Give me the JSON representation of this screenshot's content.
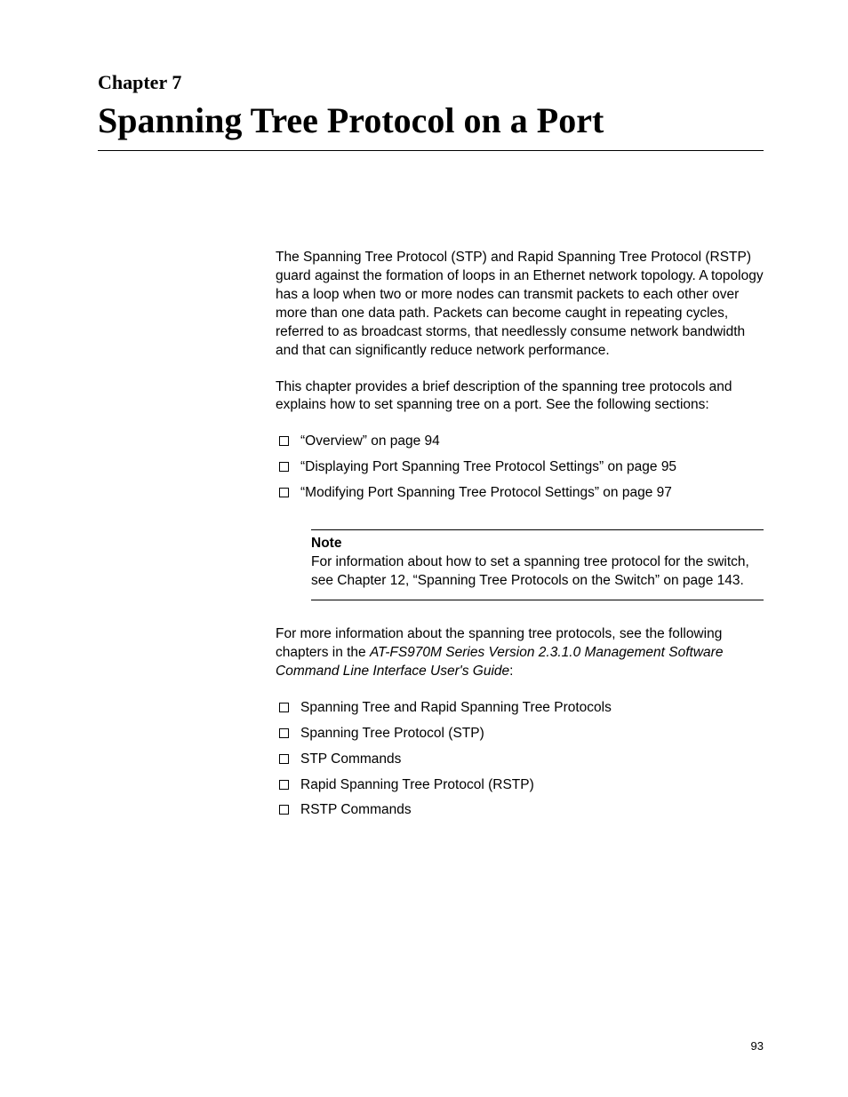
{
  "chapter_label": "Chapter 7",
  "chapter_title": "Spanning Tree Protocol on a Port",
  "para1": "The Spanning Tree Protocol (STP) and Rapid Spanning Tree Protocol (RSTP) guard against the formation of loops in an Ethernet network topology. A topology has a loop when two or more nodes can transmit packets to each other over more than one data path. Packets can become caught in repeating cycles, referred to as broadcast storms, that needlessly consume network bandwidth and that can significantly reduce network performance.",
  "para2": "This chapter provides a brief description of the spanning tree protocols and explains how to set spanning tree on a port. See the following sections:",
  "sections_list": [
    "“Overview” on page 94",
    "“Displaying Port Spanning Tree Protocol Settings” on page 95",
    "“Modifying Port Spanning Tree Protocol Settings” on page 97"
  ],
  "note": {
    "title": "Note",
    "text": "For information about how to set a spanning tree protocol for the switch, see Chapter 12, “Spanning Tree Protocols on the Switch” on page 143."
  },
  "para3_pre": "For more information about the spanning tree protocols, see the following chapters in the ",
  "para3_italic": "AT-FS970M Series Version 2.3.1.0 Management Software Command Line Interface User's Guide",
  "para3_post": ":",
  "topics_list": [
    "Spanning Tree and Rapid Spanning Tree Protocols",
    "Spanning Tree Protocol (STP)",
    "STP Commands",
    "Rapid Spanning Tree Protocol (RSTP)",
    "RSTP Commands"
  ],
  "page_number": "93"
}
